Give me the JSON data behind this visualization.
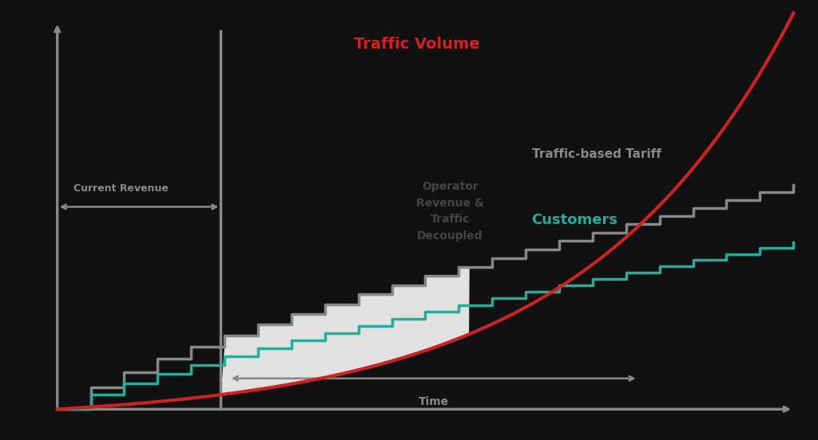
{
  "background_color": "#111111",
  "axes_color": "#888888",
  "traffic_volume_label": "Traffic Volume",
  "traffic_volume_color": "#cc2222",
  "tariff_label": "Traffic-based Tariff",
  "tariff_color": "#888888",
  "customers_label": "Customers",
  "customers_color": "#2aaa99",
  "decoupled_label": "Operator\nRevenue &\nTraffic\nDecoupled",
  "decoupled_label_color": "#444444",
  "current_revenue_label": "Current Revenue",
  "current_revenue_color": "#888888",
  "time_label": "Time",
  "time_label_color": "#888888",
  "figsize": [
    10.24,
    5.52
  ],
  "dpi": 100
}
